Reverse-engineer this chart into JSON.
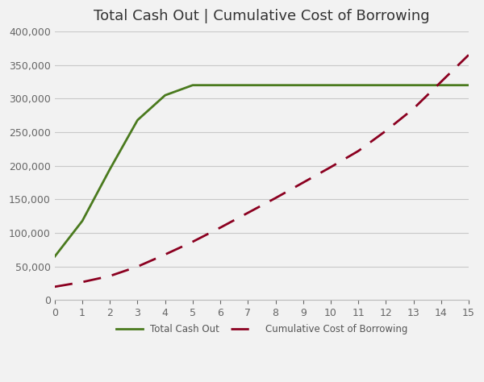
{
  "title": "Total Cash Out | Cumulative Cost of Borrowing",
  "x_values": [
    0,
    1,
    2,
    3,
    4,
    5,
    6,
    7,
    8,
    9,
    10,
    11,
    12,
    13,
    14,
    15
  ],
  "total_cash_out": [
    65000,
    118000,
    195000,
    268000,
    305000,
    320000,
    320000,
    320000,
    320000,
    320000,
    320000,
    320000,
    320000,
    320000,
    320000,
    320000
  ],
  "cumulative_cost": [
    20000,
    27000,
    36000,
    50000,
    68000,
    87000,
    108000,
    130000,
    152000,
    175000,
    198000,
    222000,
    252000,
    285000,
    325000,
    365000
  ],
  "cash_out_color": "#4a7a1e",
  "cost_color": "#8b0020",
  "background_color": "#f2f2f2",
  "plot_bg_color": "#f2f2f2",
  "grid_color": "#c8c8c8",
  "title_fontsize": 13,
  "tick_fontsize": 9,
  "ylim": [
    0,
    400000
  ],
  "xlim": [
    0,
    15
  ],
  "ytick_step": 50000,
  "xtick_values": [
    0,
    1,
    2,
    3,
    4,
    5,
    6,
    7,
    8,
    9,
    10,
    11,
    12,
    13,
    14,
    15
  ],
  "legend_cash_out": "Total Cash Out",
  "legend_cost": "Cumulative Cost of Borrowing",
  "line_width": 2.0,
  "dash_pattern": [
    8,
    5
  ]
}
